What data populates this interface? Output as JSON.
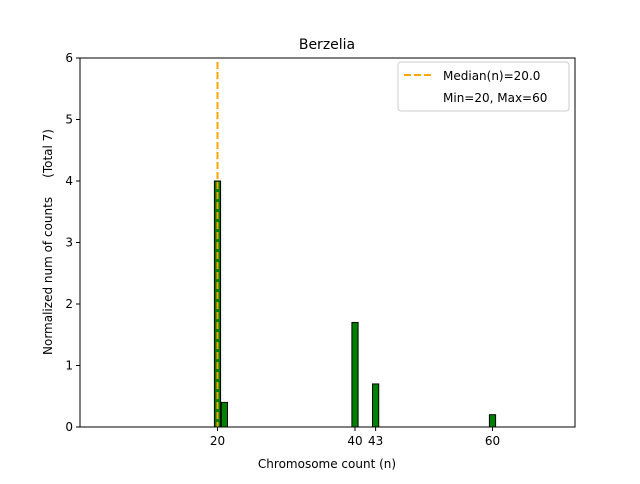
{
  "chart_data": {
    "type": "bar",
    "title": "Berzelia",
    "xlabel": "Chromosome count (n)",
    "ylabel": "Normalized num of counts     (Total 7)",
    "xlim": [
      0,
      72
    ],
    "ylim": [
      0,
      6
    ],
    "xticks": [
      20,
      40,
      43,
      60
    ],
    "yticks": [
      0,
      1,
      2,
      3,
      4,
      5,
      6
    ],
    "bar_width": 0.9,
    "bars": [
      {
        "x": 20,
        "value": 4.0
      },
      {
        "x": 21,
        "value": 0.4
      },
      {
        "x": 40,
        "value": 1.7
      },
      {
        "x": 43,
        "value": 0.7
      },
      {
        "x": 60,
        "value": 0.2
      }
    ],
    "median": 20.0,
    "legend": {
      "placement": "top-right",
      "entries": [
        "Median(n)=20.0",
        "Min=20, Max=60"
      ]
    },
    "colors": {
      "bar": "#008000",
      "bar_edge": "#000000",
      "median": "#FFA500"
    }
  }
}
